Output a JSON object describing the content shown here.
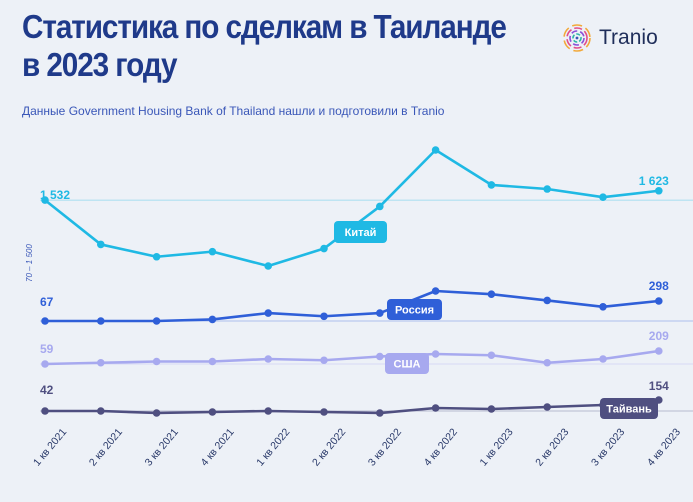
{
  "header": {
    "title_line1": "Статистика по сделкам в Таиланде",
    "title_line2": "в 2023 году",
    "subtitle": "Данные Government Housing Bank of Thailand нашли и подготовили в Tranio"
  },
  "logo": {
    "text": "Tranio",
    "icon": "tranio-fingerprint-icon"
  },
  "colors": {
    "china": "#1fb9e4",
    "russia": "#2f5fd8",
    "usa": "#a7a9ef",
    "taiwan": "#4f4f80",
    "title": "#1f3a8a"
  },
  "chart_data": {
    "type": "line",
    "title": "Статистика по сделкам в Таиланде в 2023 году",
    "categories": [
      "1 кв 2021",
      "2 кв 2021",
      "3 кв 2021",
      "4 кв 2021",
      "1 кв 2022",
      "2 кв 2022",
      "3 кв 2022",
      "4 кв 2022",
      "1 кв 2023",
      "2 кв 2023",
      "3 кв 2023",
      "4 кв 2023"
    ],
    "axis_note": "70 – 1 500",
    "series": [
      {
        "name": "Китай",
        "color": "#1fb9e4",
        "values": [
          1532,
          1100,
          980,
          1030,
          890,
          1060,
          1470,
          2020,
          1680,
          1640,
          1560,
          1623
        ],
        "start_label": "1 532",
        "end_label": "1 623"
      },
      {
        "name": "Россия",
        "color": "#2f5fd8",
        "values": [
          67,
          67,
          67,
          68,
          72,
          70,
          72,
          86,
          84,
          80,
          76,
          298
        ],
        "start_label": "67",
        "end_label": "298"
      },
      {
        "name": "США",
        "color": "#a7a9ef",
        "values": [
          59,
          60,
          61,
          61,
          63,
          62,
          65,
          67,
          66,
          60,
          63,
          209
        ],
        "start_label": "59",
        "end_label": "209"
      },
      {
        "name": "Тайвань",
        "color": "#4f4f80",
        "values": [
          42,
          42,
          40,
          41,
          42,
          41,
          40,
          45,
          44,
          46,
          48,
          154
        ],
        "start_label": "42",
        "end_label": "154"
      }
    ]
  }
}
